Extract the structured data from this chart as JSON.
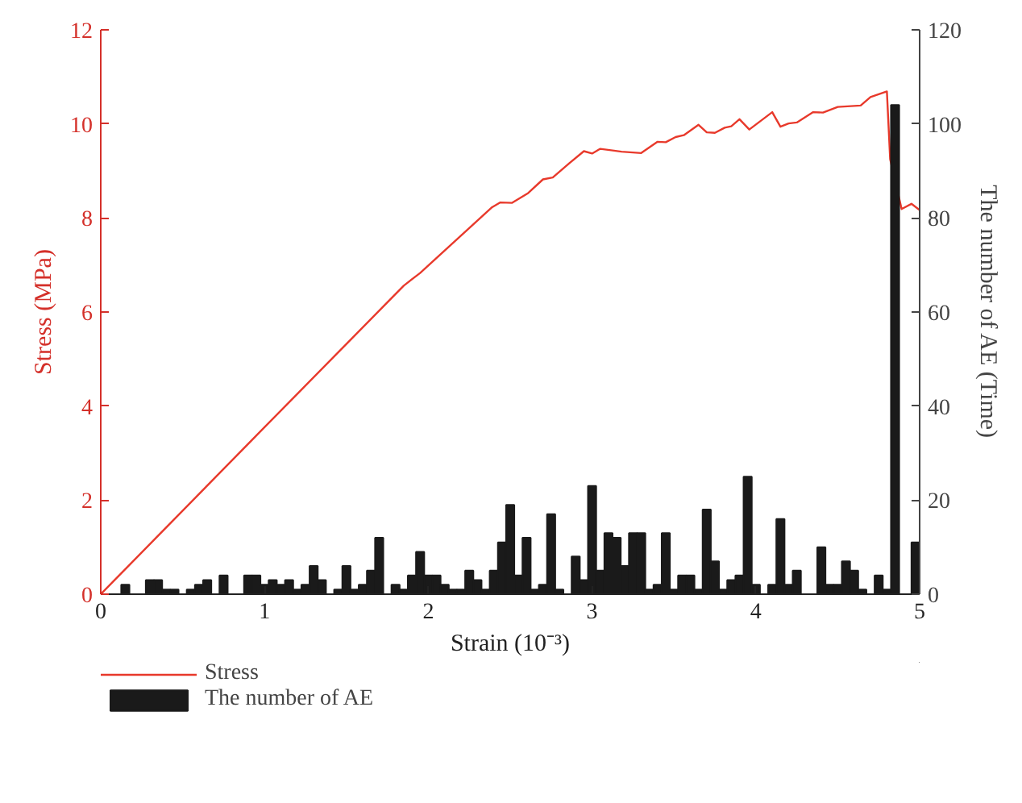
{
  "chart_data": {
    "type": "line",
    "xlabel": "Strain (10⁻³)",
    "ylabel": "Stress (MPa)",
    "y2label": "The number of AE (Time)",
    "xlim": [
      0,
      5
    ],
    "xticks": [
      0,
      1,
      2,
      3,
      4,
      5
    ],
    "ylim": [
      0,
      12
    ],
    "yticks": [
      0,
      2,
      4,
      6,
      8,
      10,
      12
    ],
    "y2lim": [
      0,
      120
    ],
    "y2ticks": [
      0,
      20,
      40,
      60,
      80,
      100,
      120
    ],
    "grid": false,
    "legend": "bottom left",
    "series": [
      {
        "name": "Stress",
        "color": "#e8392b",
        "x": [
          0,
          1.0,
          1.85,
          1.95,
          2.39,
          2.44,
          2.51,
          2.61,
          2.7,
          2.76,
          2.86,
          2.95,
          3.0,
          3.05,
          3.18,
          3.3,
          3.4,
          3.45,
          3.51,
          3.56,
          3.65,
          3.7,
          3.75,
          3.81,
          3.85,
          3.9,
          3.96,
          4.1,
          4.15,
          4.2,
          4.25,
          4.35,
          4.41,
          4.5,
          4.64,
          4.7,
          4.8,
          4.82,
          4.89,
          4.95,
          5.0
        ],
        "values": [
          0,
          3.55,
          6.56,
          6.83,
          8.23,
          8.33,
          8.32,
          8.53,
          8.82,
          8.86,
          9.16,
          9.42,
          9.37,
          9.47,
          9.41,
          9.38,
          9.62,
          9.61,
          9.72,
          9.76,
          9.98,
          9.82,
          9.81,
          9.92,
          9.95,
          10.1,
          9.88,
          10.25,
          9.94,
          10.01,
          10.03,
          10.25,
          10.24,
          10.36,
          10.39,
          10.57,
          10.69,
          9.25,
          8.19,
          8.3,
          8.17
        ]
      },
      {
        "name": "The number of AE",
        "type": "bar",
        "axis": "y2",
        "color": "#1a1a1a",
        "x": [
          0.15,
          0.3,
          0.35,
          0.4,
          0.45,
          0.55,
          0.6,
          0.65,
          0.75,
          0.9,
          0.95,
          1.0,
          1.05,
          1.1,
          1.15,
          1.2,
          1.25,
          1.3,
          1.35,
          1.45,
          1.5,
          1.55,
          1.6,
          1.65,
          1.7,
          1.8,
          1.85,
          1.9,
          1.95,
          2.0,
          2.05,
          2.1,
          2.15,
          2.2,
          2.25,
          2.3,
          2.35,
          2.4,
          2.45,
          2.5,
          2.55,
          2.6,
          2.65,
          2.7,
          2.75,
          2.8,
          2.9,
          2.95,
          3.0,
          3.05,
          3.1,
          3.15,
          3.2,
          3.25,
          3.3,
          3.35,
          3.4,
          3.45,
          3.5,
          3.55,
          3.6,
          3.65,
          3.7,
          3.75,
          3.8,
          3.85,
          3.9,
          3.95,
          4.0,
          4.1,
          4.15,
          4.2,
          4.25,
          4.4,
          4.45,
          4.5,
          4.55,
          4.6,
          4.65,
          4.75,
          4.8,
          4.85,
          4.975
        ],
        "values": [
          2,
          3,
          3,
          1,
          1,
          1,
          2,
          3,
          4,
          4,
          4,
          2,
          3,
          2,
          3,
          1,
          2,
          6,
          3,
          1,
          6,
          1,
          2,
          5,
          12,
          2,
          1,
          4,
          9,
          4,
          4,
          2,
          1,
          1,
          5,
          3,
          1,
          5,
          11,
          19,
          4,
          12,
          1,
          2,
          17,
          1,
          8,
          3,
          23,
          5,
          13,
          12,
          6,
          13,
          13,
          1,
          2,
          13,
          1,
          4,
          4,
          1,
          18,
          7,
          1,
          3,
          4,
          25,
          2,
          2,
          16,
          2,
          5,
          10,
          2,
          2,
          7,
          5,
          1,
          4,
          1,
          104,
          11
        ]
      }
    ]
  }
}
